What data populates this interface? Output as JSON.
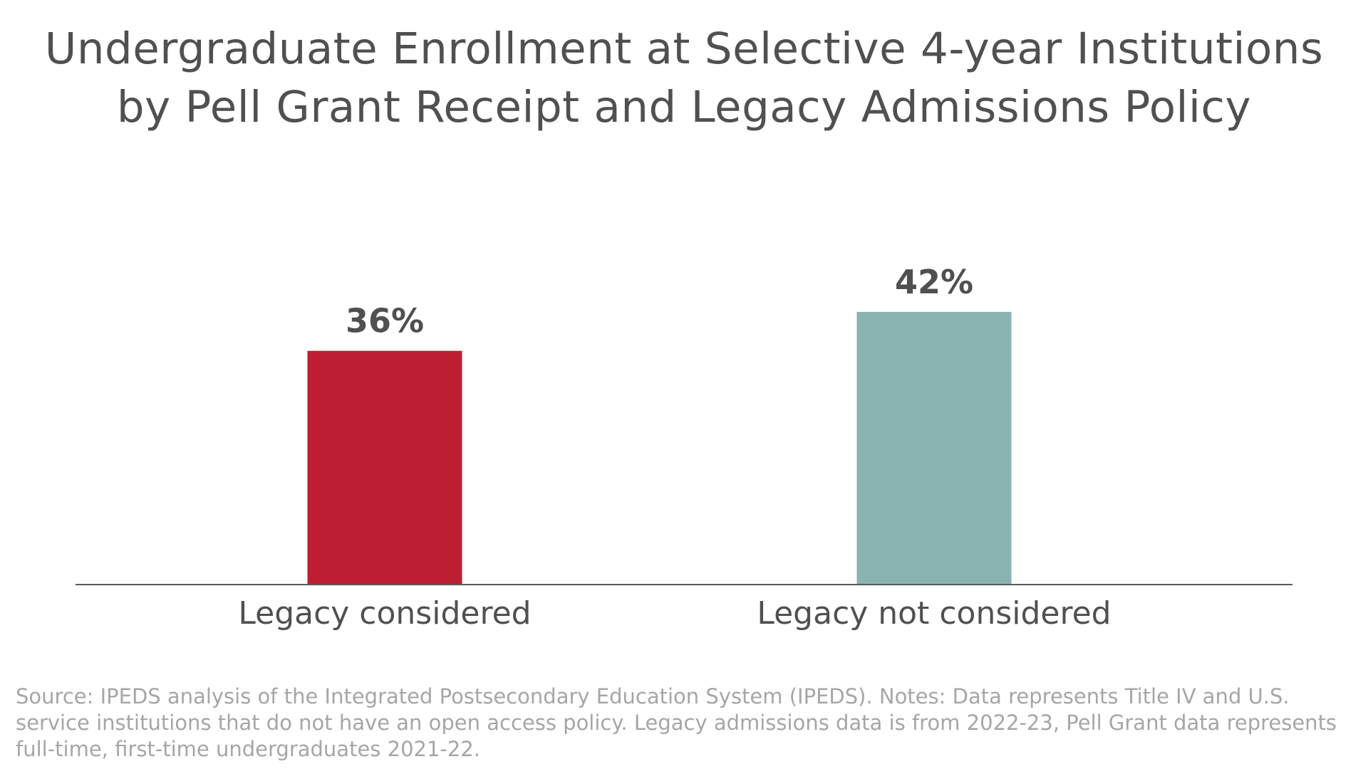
{
  "chart_data": {
    "type": "bar",
    "title": [
      "Undergraduate Enrollment at Selective 4-year Institutions",
      "by Pell Grant Receipt and Legacy Admissions Policy"
    ],
    "categories": [
      "Legacy considered",
      "Legacy not considered"
    ],
    "values": [
      36,
      42
    ],
    "value_labels": [
      "36%",
      "42%"
    ],
    "value_unit": "%",
    "colors": [
      "#be1e32",
      "#89b3b0"
    ],
    "xlabel": "",
    "ylabel": "",
    "ylim": [
      0,
      42
    ],
    "grid": false,
    "legend": "none",
    "source": "Source: IPEDS analysis of the Integrated Postsecondary Education System (IPEDS). Notes: Data represents Title IV and U.S. service institutions that do not have an open access policy. Legacy admissions data is from 2022-23, Pell Grant data represents full-time, first-time undergraduates 2021-22."
  }
}
